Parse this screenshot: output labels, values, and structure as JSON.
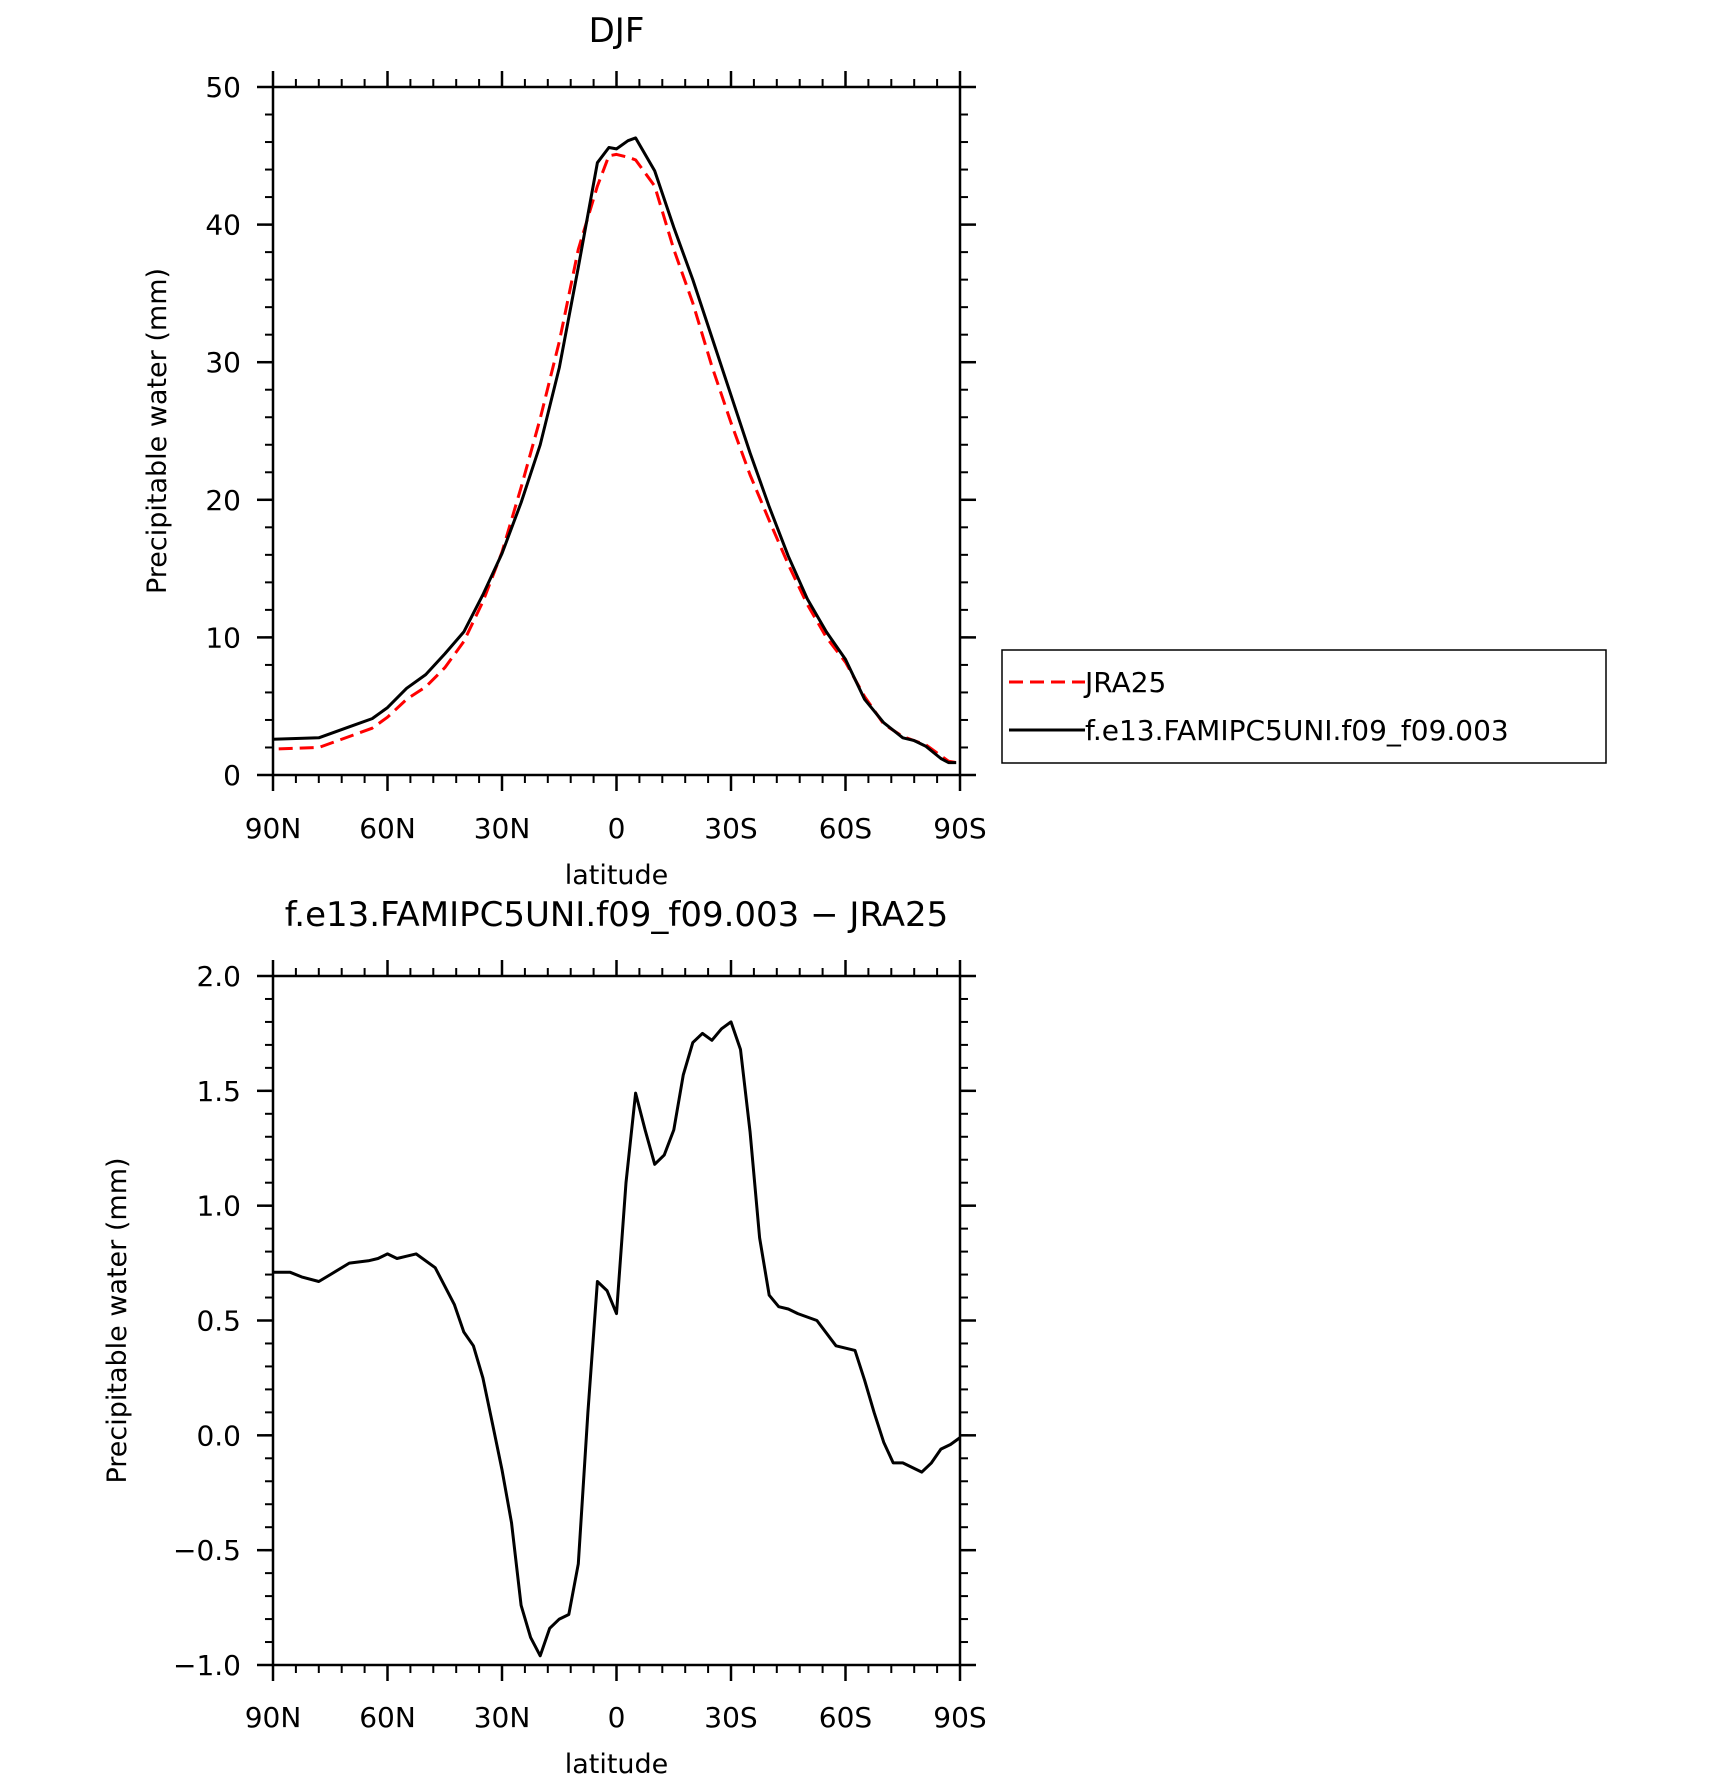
{
  "chart_data": [
    {
      "type": "line",
      "title": "DJF",
      "xlabel": "latitude",
      "ylabel": "Precipitable water (mm)",
      "xlim": [
        90,
        -90
      ],
      "ylim": [
        0,
        50
      ],
      "xticks": [
        90,
        60,
        30,
        0,
        -30,
        -60,
        -90
      ],
      "xtick_labels": [
        "90N",
        "60N",
        "30N",
        "0",
        "30S",
        "60S",
        "90S"
      ],
      "yticks": [
        0,
        10,
        20,
        30,
        40,
        50
      ],
      "ytick_labels": [
        "0",
        "10",
        "20",
        "30",
        "40",
        "50"
      ],
      "legend_position": "right",
      "series": [
        {
          "name": "JRA25",
          "color": "#ff0000",
          "dash": "dashed",
          "x": [
            88.5,
            78,
            70,
            64,
            60,
            55,
            50,
            45,
            40,
            35,
            30,
            25,
            20,
            15,
            10,
            5,
            2,
            0,
            -3,
            -5,
            -10,
            -15,
            -20,
            -25,
            -30,
            -35,
            -40,
            -45,
            -50,
            -55,
            -60,
            -65,
            -70,
            -75,
            -78,
            -81,
            -85,
            -87,
            -89
          ],
          "values": [
            1.9,
            2.0,
            2.8,
            3.4,
            4.2,
            5.5,
            6.4,
            7.8,
            9.7,
            12.6,
            16.2,
            20.9,
            25.9,
            31.5,
            38.2,
            42.8,
            45.0,
            45.1,
            44.9,
            44.7,
            42.8,
            38.2,
            34.3,
            29.7,
            25.6,
            21.8,
            18.5,
            15.3,
            12.4,
            10.0,
            8.2,
            5.7,
            3.7,
            2.8,
            2.5,
            2.2,
            1.4,
            1.0,
            0.9
          ]
        },
        {
          "name": "f.e13.FAMIPC5UNI.f09_f09.003",
          "color": "#000000",
          "dash": "solid",
          "x": [
            90,
            78,
            70,
            64,
            60,
            55,
            50,
            45,
            40,
            35,
            30,
            25,
            20,
            15,
            10,
            5,
            2,
            0,
            -3,
            -5,
            -10,
            -15,
            -20,
            -25,
            -30,
            -35,
            -40,
            -45,
            -50,
            -55,
            -60,
            -65,
            -70,
            -75,
            -78,
            -81,
            -85,
            -87,
            -89
          ],
          "values": [
            2.6,
            2.7,
            3.5,
            4.1,
            4.9,
            6.3,
            7.3,
            8.8,
            10.4,
            13.1,
            16.1,
            19.8,
            24.0,
            29.6,
            36.9,
            44.5,
            45.6,
            45.5,
            46.1,
            46.3,
            43.9,
            39.8,
            36.0,
            31.8,
            27.6,
            23.4,
            19.5,
            15.9,
            12.8,
            10.4,
            8.4,
            5.5,
            3.8,
            2.7,
            2.5,
            2.1,
            1.2,
            0.9,
            0.9
          ]
        }
      ]
    },
    {
      "type": "line",
      "title": "f.e13.FAMIPC5UNI.f09_f09.003 − JRA25",
      "xlabel": "latitude",
      "ylabel": "Precipitable water (mm)",
      "xlim": [
        90,
        -90
      ],
      "ylim": [
        -1.0,
        2.0
      ],
      "xticks": [
        90,
        60,
        30,
        0,
        -30,
        -60,
        -90
      ],
      "xtick_labels": [
        "90N",
        "60N",
        "30N",
        "0",
        "30S",
        "60S",
        "90S"
      ],
      "yticks": [
        -1.0,
        -0.5,
        0.0,
        0.5,
        1.0,
        1.5,
        2.0
      ],
      "ytick_labels": [
        "−1.0",
        "−0.5",
        "0.0",
        "0.5",
        "1.0",
        "1.5",
        "2.0"
      ],
      "series": [
        {
          "color": "#000000",
          "dash": "solid",
          "x": [
            90,
            85.5,
            82.5,
            78,
            75,
            70,
            65,
            62.5,
            60,
            57.5,
            55,
            52.5,
            47.5,
            42.5,
            40,
            37.5,
            35,
            32.5,
            30,
            27.5,
            25,
            22.5,
            20,
            17.5,
            15,
            12.5,
            10,
            7.5,
            5,
            2.5,
            0,
            -2.5,
            -5,
            -7.5,
            -10,
            -12.5,
            -15,
            -17.5,
            -20,
            -22.5,
            -25,
            -27.5,
            -30,
            -32.5,
            -35,
            -37.5,
            -40,
            -42.5,
            -45,
            -47.5,
            -52.5,
            -57.5,
            -62.5,
            -65,
            -67.5,
            -70,
            -72.5,
            -75,
            -77.5,
            -80,
            -82.5,
            -85,
            -87.5,
            -90
          ],
          "values": [
            0.71,
            0.71,
            0.69,
            0.67,
            0.7,
            0.75,
            0.76,
            0.77,
            0.79,
            0.77,
            0.78,
            0.79,
            0.73,
            0.57,
            0.45,
            0.39,
            0.25,
            0.05,
            -0.15,
            -0.38,
            -0.74,
            -0.88,
            -0.96,
            -0.84,
            -0.8,
            -0.78,
            -0.56,
            0.1,
            0.67,
            0.63,
            0.53,
            1.1,
            1.49,
            1.33,
            1.18,
            1.22,
            1.33,
            1.57,
            1.71,
            1.75,
            1.72,
            1.77,
            1.8,
            1.68,
            1.32,
            0.86,
            0.61,
            0.56,
            0.55,
            0.53,
            0.5,
            0.39,
            0.37,
            0.24,
            0.1,
            -0.03,
            -0.12,
            -0.12,
            -0.14,
            -0.16,
            -0.12,
            -0.06,
            -0.04,
            -0.01
          ]
        }
      ]
    }
  ]
}
